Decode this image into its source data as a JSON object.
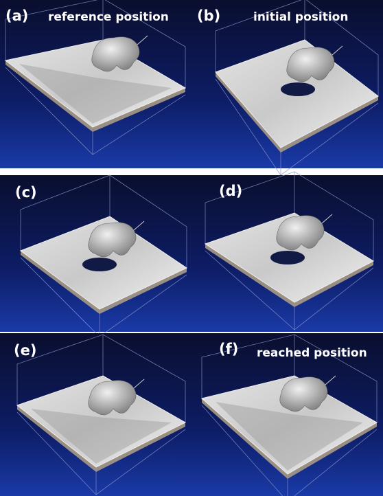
{
  "panels": [
    {
      "label": "(a)",
      "caption": "reference position"
    },
    {
      "label": "(b)",
      "caption": "initial position"
    },
    {
      "label": "(c)"
    },
    {
      "label": "(d)"
    },
    {
      "label": "(e)"
    },
    {
      "label": "(f)",
      "caption": "reached position"
    }
  ]
}
